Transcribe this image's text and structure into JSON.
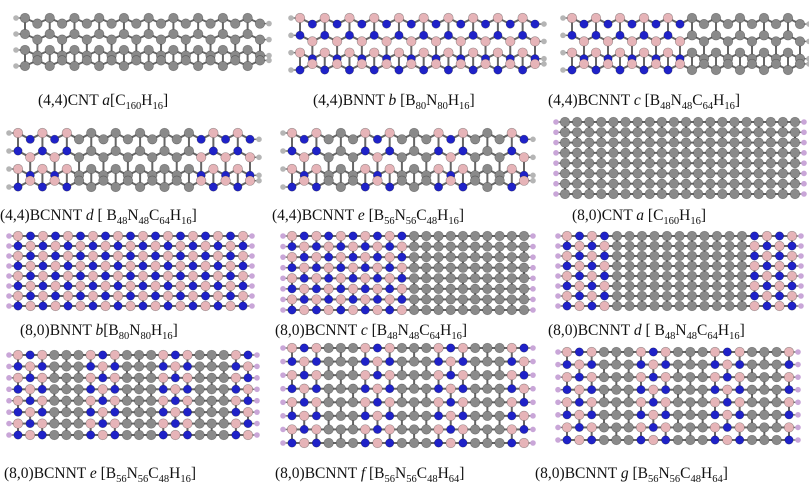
{
  "figures": [
    {
      "name": "(4,4)CNT ",
      "label": "a",
      "formula": [
        "[C",
        "160",
        "H",
        "16",
        "]"
      ]
    },
    {
      "name": "(4,4)BNNT ",
      "label": "b",
      "formula": [
        " [B",
        "80",
        "N",
        "80",
        "H",
        "16",
        "]"
      ]
    },
    {
      "name": "(4,4)BCNNT ",
      "label": "c",
      "formula": [
        " [B",
        "48",
        "N",
        "48",
        "C",
        "64",
        "H",
        "16",
        "]"
      ]
    },
    {
      "name": "(4,4)BCNNT ",
      "label": "d",
      "formula": [
        " [ B",
        "48",
        "N",
        "48",
        "C",
        "64",
        "H",
        "16",
        "]"
      ]
    },
    {
      "name": "(4,4)BCNNT ",
      "label": "e",
      "formula": [
        " [B",
        "56",
        "N",
        "56",
        "C",
        "48",
        "H",
        "16",
        "]"
      ]
    },
    {
      "name": "(8,0)CNT ",
      "label": "a",
      "formula": [
        " [C",
        "160",
        "H",
        "16",
        "]"
      ]
    },
    {
      "name": "(8,0)BNNT ",
      "label": "b",
      "formula": [
        "[B",
        "80",
        "N",
        "80",
        "H",
        "16",
        "]"
      ]
    },
    {
      "name": "(8,0)BCNNT ",
      "label": "c",
      "formula": [
        " [B",
        "48",
        "N",
        "48",
        "C",
        "64",
        "H",
        "16",
        "]"
      ]
    },
    {
      "name": "(8,0)BCNNT ",
      "label": "d",
      "formula": [
        " [ B",
        "48",
        "N",
        "48",
        "C",
        "64",
        "H",
        "16",
        "]"
      ]
    },
    {
      "name": "(8,0)BCNNT ",
      "label": "e",
      "formula": [
        " [B",
        "56",
        "N",
        "56",
        "C",
        "48",
        "H",
        "16",
        "]"
      ]
    },
    {
      "name": "(8,0)BCNNT ",
      "label": "f",
      "formula": [
        " [B",
        "56",
        "N",
        "56",
        "C",
        "48",
        "H",
        "64",
        "]"
      ]
    },
    {
      "name": "(8,0)BCNNT ",
      "label": "g",
      "formula": [
        " [B",
        "56",
        "N",
        "56",
        "C",
        "48",
        "H",
        "64",
        "]"
      ]
    }
  ]
}
